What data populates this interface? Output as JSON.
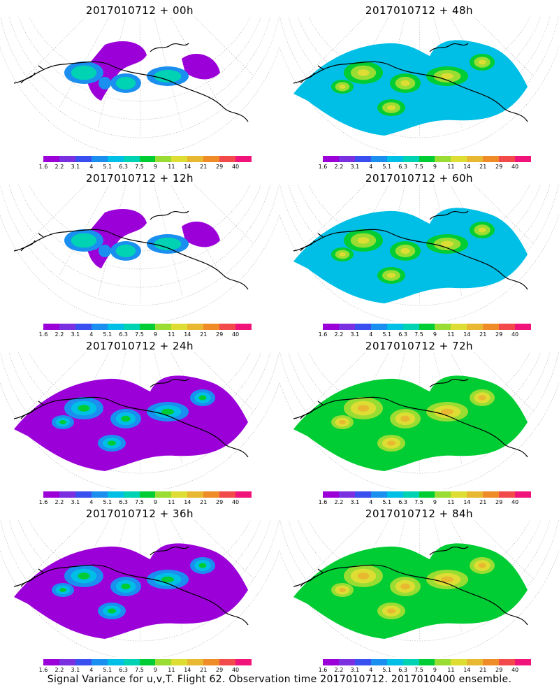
{
  "panels": [
    {
      "title": "2017010712 + 00h",
      "level": 0
    },
    {
      "title": "2017010712 + 48h",
      "level": 2
    },
    {
      "title": "2017010712 + 12h",
      "level": 0
    },
    {
      "title": "2017010712 + 60h",
      "level": 2
    },
    {
      "title": "2017010712 + 24h",
      "level": 1
    },
    {
      "title": "2017010712 + 72h",
      "level": 3
    },
    {
      "title": "2017010712 + 36h",
      "level": 1
    },
    {
      "title": "2017010712 + 84h",
      "level": 3
    }
  ],
  "colorbar": {
    "labels": [
      "1.6",
      "2.2",
      "3.1",
      "4",
      "5.1",
      "6.3",
      "7.5",
      "9",
      "11",
      "14",
      "21",
      "29",
      "40"
    ],
    "colors": [
      "#9b00d9",
      "#7a2fe0",
      "#3a4ff0",
      "#1a8ff0",
      "#00bfe6",
      "#00d2b4",
      "#00cc33",
      "#99dd33",
      "#dddd33",
      "#e8b830",
      "#f08c28",
      "#f24a4a",
      "#f0147a"
    ]
  },
  "caption": "Signal Variance for u,v,T. Flight 62. Observation time 2017010712. 2017010400 ensemble."
}
